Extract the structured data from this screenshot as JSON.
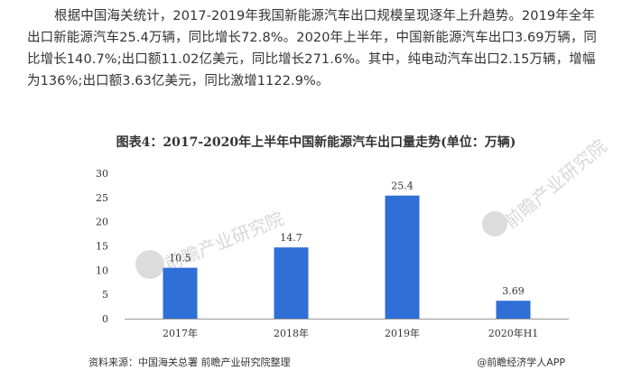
{
  "article": {
    "paragraph": "根据中国海关统计，2017-2019年我国新能源汽车出口规模呈现逐年上升趋势。2019年全年出口新能源汽车25.4万辆，同比增长72.8%。2020年上半年，中国新能源汽车出口3.69万辆，同比增长140.7%;出口额11.02亿美元，同比增长271.6%。其中，纯电动汽车出口2.15万辆，增幅为136%;出口额3.63亿美元，同比激增1122.9%。"
  },
  "chart_data": {
    "type": "bar",
    "title": "图表4：2017-2020年上半年中国新能源汽车出口量走势(单位：万辆)",
    "categories": [
      "2017年",
      "2018年",
      "2019年",
      "2020年H1"
    ],
    "values": [
      10.5,
      14.7,
      25.4,
      3.69
    ],
    "value_labels": [
      "10.5",
      "14.7",
      "25.4",
      "3.69"
    ],
    "ylim": [
      0,
      30
    ],
    "yticks": [
      "0",
      "5",
      "10",
      "15",
      "20",
      "25",
      "30"
    ],
    "bar_color": "#2f6fd6",
    "xlabel": "",
    "ylabel": "",
    "grid": false
  },
  "footer": {
    "source": "资料来源：中国海关总署 前瞻产业研究院整理",
    "brand": "@前瞻经济学人APP"
  },
  "watermarks": [
    "前瞻产业研究院",
    "前瞻产业研究院"
  ]
}
